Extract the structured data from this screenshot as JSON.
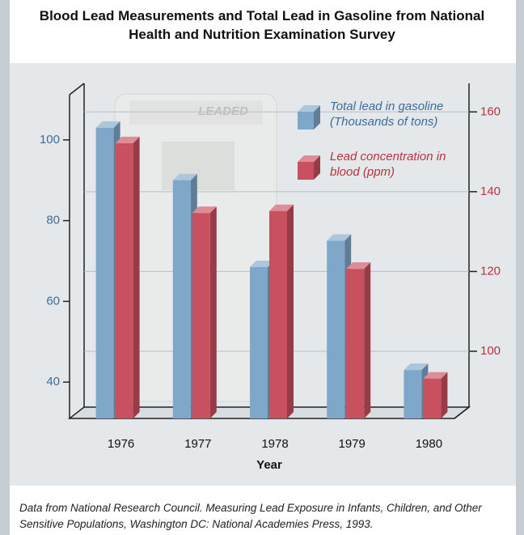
{
  "chart_data": {
    "type": "bar",
    "title": "Blood Lead Measurements and Total Lead in Gasoline from National Health and Nutrition Examination Survey",
    "x_label": "Year",
    "categories": [
      "1976",
      "1977",
      "1978",
      "1979",
      "1980"
    ],
    "series": [
      {
        "name": "Total lead in gasoline (Thousands of tons)",
        "color": "#7fa7c9",
        "values": [
          103,
          90,
          68.5,
          75,
          43
        ],
        "axis": "y"
      },
      {
        "name": "Lead concentration in blood (ppm)",
        "color": "#c9505f",
        "values": [
          155,
          137.5,
          138,
          123.5,
          96
        ],
        "axis": "y2"
      }
    ],
    "ylim": [
      31,
      114
    ],
    "yticks": [
      40,
      60,
      80,
      100
    ],
    "y2lim": [
      86,
      170
    ],
    "y2ticks": [
      100,
      120,
      140,
      160
    ],
    "grid": true,
    "annotations": [
      "LEADED"
    ],
    "source": "Data from National Research Council. Measuring Lead Exposure in Infants, Children, and Other Sensitive Populations, Washington DC: National Academies Press, 1993."
  }
}
